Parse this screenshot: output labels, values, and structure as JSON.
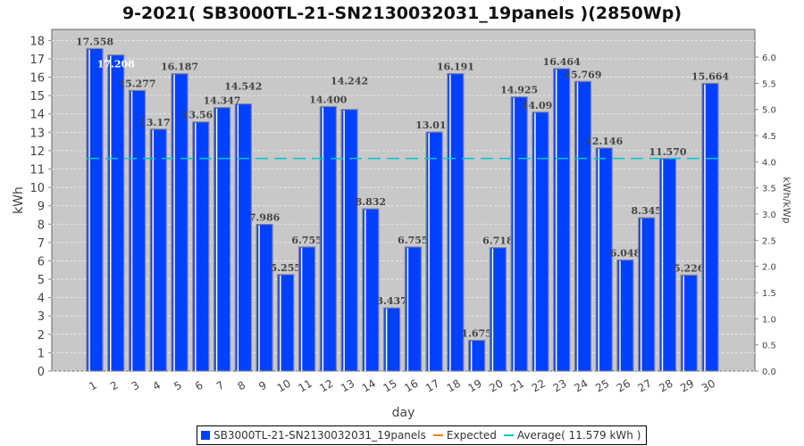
{
  "chart_data": {
    "type": "bar",
    "title": "9-2021( SB3000TL-21-SN2130032031_19panels )(2850Wp)",
    "xlabel": "day",
    "ylabel": "kWh",
    "y2label": "kWh/kWp",
    "ylim": [
      0,
      18.6
    ],
    "y2lim": [
      0,
      6.53
    ],
    "yticks": [
      0,
      1,
      2,
      3,
      4,
      5,
      6,
      7,
      8,
      9,
      10,
      11,
      12,
      13,
      14,
      15,
      16,
      17,
      18
    ],
    "y2ticks": [
      "0.0",
      "0.5",
      "1.0",
      "1.5",
      "2.0",
      "2.5",
      "3.0",
      "3.5",
      "4.0",
      "4.5",
      "5.0",
      "5.5",
      "6.0"
    ],
    "categories": [
      "1",
      "2",
      "3",
      "4",
      "5",
      "6",
      "7",
      "8",
      "9",
      "10",
      "11",
      "12",
      "13",
      "14",
      "15",
      "16",
      "17",
      "18",
      "19",
      "20",
      "21",
      "22",
      "23",
      "24",
      "25",
      "26",
      "27",
      "28",
      "29",
      "30"
    ],
    "values": [
      17.558,
      17.208,
      15.277,
      13.171,
      16.187,
      13.562,
      14.347,
      14.542,
      7.986,
      5.255,
      6.755,
      14.4,
      14.242,
      8.832,
      3.437,
      6.755,
      13.011,
      16.191,
      1.675,
      6.718,
      14.925,
      14.095,
      16.464,
      15.769,
      12.146,
      6.048,
      8.345,
      11.57,
      5.226,
      15.664
    ],
    "labels": [
      "17.558",
      "17.208",
      "15.277",
      "13.171",
      "16.187",
      "13.562",
      "14.347",
      "14.542",
      "7.986",
      "5.255",
      "6.755",
      "14.400",
      "14.242",
      "8.832",
      "3.437",
      "6.755",
      "13.011",
      "16.191",
      "1.675",
      "6.718",
      "14.925",
      "14.095",
      "16.464",
      "15.769",
      "12.146",
      "6.048",
      "8.345",
      "11.570",
      "5.226",
      "15.664"
    ],
    "average": 11.579,
    "colors": {
      "bar": "#0040ff",
      "expected": "#ff8000",
      "average": "#00c8c8",
      "plot_bg": "#c8c8c8"
    },
    "legend": {
      "position": "bottom",
      "items": [
        "SB3000TL-21-SN2130032031_19panels",
        "Expected",
        "Average( 11.579 kWh )"
      ]
    }
  }
}
